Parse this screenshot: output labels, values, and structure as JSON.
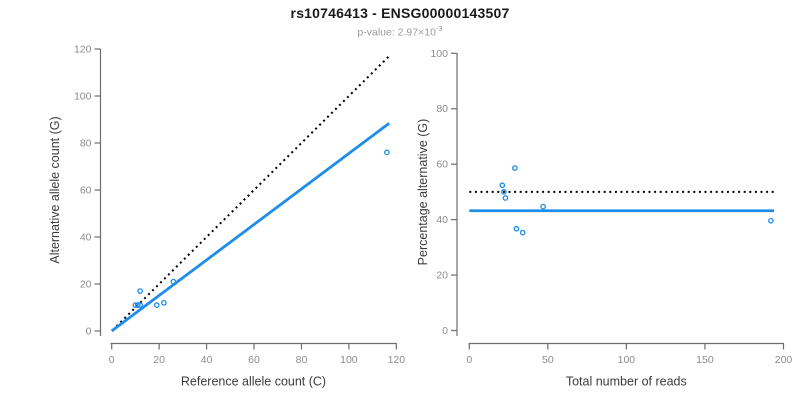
{
  "header": {
    "title": "rs10746413 - ENSG00000143507",
    "subtitle_text": "p-value: 2.97×10",
    "subtitle_sup": "-3"
  },
  "colors": {
    "accent_blue": "#1e8ceb",
    "line_black": "#000000",
    "axis_stroke": "#6e6e6e",
    "tick_label": "#8c8c8c",
    "axis_title": "#3c3c3c",
    "title_color": "#1a1a1a",
    "subtitle_color": "#9b9b9b",
    "background": "#ffffff"
  },
  "chart_data": [
    {
      "type": "scatter",
      "panel": "left",
      "title": "rs10746413 - ENSG00000143507",
      "subtitle": "p-value: 2.97×10^-3",
      "xlabel": "Reference allele count (C)",
      "ylabel": "Alternative allele count (G)",
      "xlim": [
        0,
        120
      ],
      "ylim": [
        0,
        120
      ],
      "xticks": [
        0,
        20,
        40,
        60,
        80,
        100,
        120
      ],
      "yticks": [
        0,
        20,
        40,
        60,
        80,
        100,
        120
      ],
      "grid": false,
      "legend": "none",
      "points": [
        [
          12,
          17
        ],
        [
          10,
          11
        ],
        [
          11,
          11
        ],
        [
          12,
          11
        ],
        [
          19,
          11
        ],
        [
          22,
          12
        ],
        [
          26,
          21
        ],
        [
          116,
          76
        ]
      ],
      "lines": [
        {
          "name": "identity-line",
          "style": "dotted",
          "color": "black",
          "x1": 2,
          "y1": 2,
          "x2": 117,
          "y2": 117
        },
        {
          "name": "fit-line",
          "style": "solid",
          "color": "blue",
          "x1": 0,
          "y1": 0,
          "x2": 117,
          "y2": 88.4
        }
      ]
    },
    {
      "type": "scatter",
      "panel": "right",
      "xlabel": "Total number of reads",
      "ylabel": "Percentage alternative (G)",
      "xlim": [
        0,
        200
      ],
      "ylim": [
        0,
        100
      ],
      "xticks": [
        0,
        50,
        100,
        150,
        200
      ],
      "yticks": [
        0,
        20,
        40,
        60,
        80,
        100
      ],
      "grid": false,
      "legend": "none",
      "points": [
        [
          29,
          58.6
        ],
        [
          21,
          52.4
        ],
        [
          22,
          50.0
        ],
        [
          23,
          47.8
        ],
        [
          30,
          36.7
        ],
        [
          34,
          35.3
        ],
        [
          47,
          44.7
        ],
        [
          192,
          39.6
        ]
      ],
      "lines": [
        {
          "name": "fifty-percent-line",
          "style": "dotted",
          "color": "black",
          "x1": 0,
          "y1": 50,
          "x2": 196,
          "y2": 50
        },
        {
          "name": "mean-percentage-line",
          "style": "solid",
          "color": "blue",
          "x1": 0,
          "y1": 43.2,
          "x2": 194,
          "y2": 43.2
        }
      ]
    }
  ]
}
